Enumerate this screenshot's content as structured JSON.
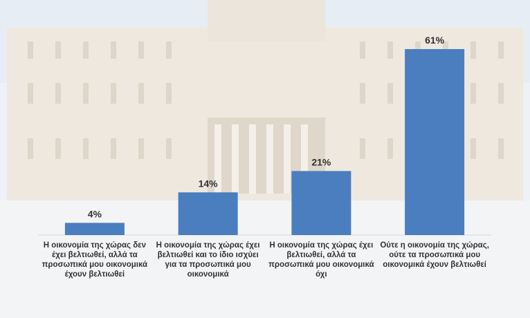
{
  "chart_data": {
    "type": "bar",
    "categories": [
      "Η οικονομία της χώρας δεν έχει βελτιωθεί, αλλά τα προσωπικά μου οικονομικά έχουν βελτιωθεί",
      "Η οικονομία της χώρας έχει βελτιωθεί και το ίδιο ισχύει για τα προσωπικά μου οικονομικά",
      "Η οικονομία της χώρας έχει βελτιωθεί, αλλά τα προσωπικά μου οικονομικά όχι",
      "Ούτε η οικονομία της χώρας, ούτε τα προσωπικά μου οικονομικά έχουν βελτιωθεί"
    ],
    "values": [
      4,
      14,
      21,
      61
    ],
    "value_labels": [
      "4%",
      "14%",
      "21%",
      "61%"
    ],
    "color": "#4a7ebf"
  }
}
